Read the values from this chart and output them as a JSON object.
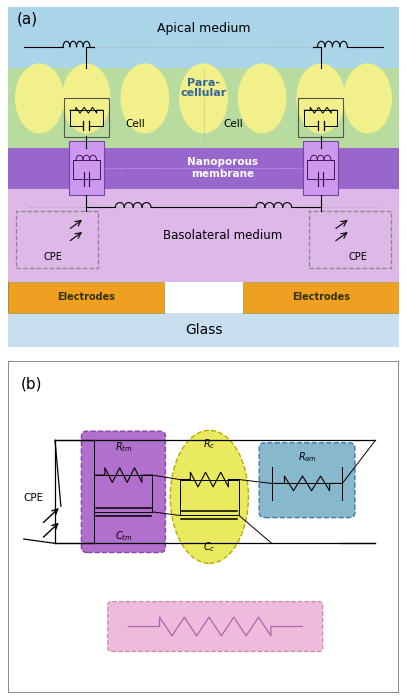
{
  "fig_width": 4.07,
  "fig_height": 7.0,
  "dpi": 100,
  "panel_a": {
    "apical_color": "#aad4e8",
    "cell_color": "#f2f08a",
    "paracell_color": "#b8dba0",
    "membrane_color": "#9966cc",
    "basolateral_color": "#ddb8e8",
    "electrode_color": "#f0a020",
    "glass_color": "#c8dff0",
    "apical_text": "Apical medium",
    "paracell_text": "Para-\ncellular",
    "cell_text1": "Cell",
    "cell_text2": "Cell",
    "membrane_text": "Nanoporous\nmembrane",
    "basolateral_text": "Basolateral medium",
    "cpe_text": "CPE",
    "electrode_text": "Electrodes",
    "glass_text": "Glass"
  },
  "panel_b": {
    "rtm_color": "#b070cc",
    "rc_color": "#eaea60",
    "ram_color": "#88b8cc",
    "rp_color": "#eebbdd",
    "cpe_text": "CPE"
  }
}
